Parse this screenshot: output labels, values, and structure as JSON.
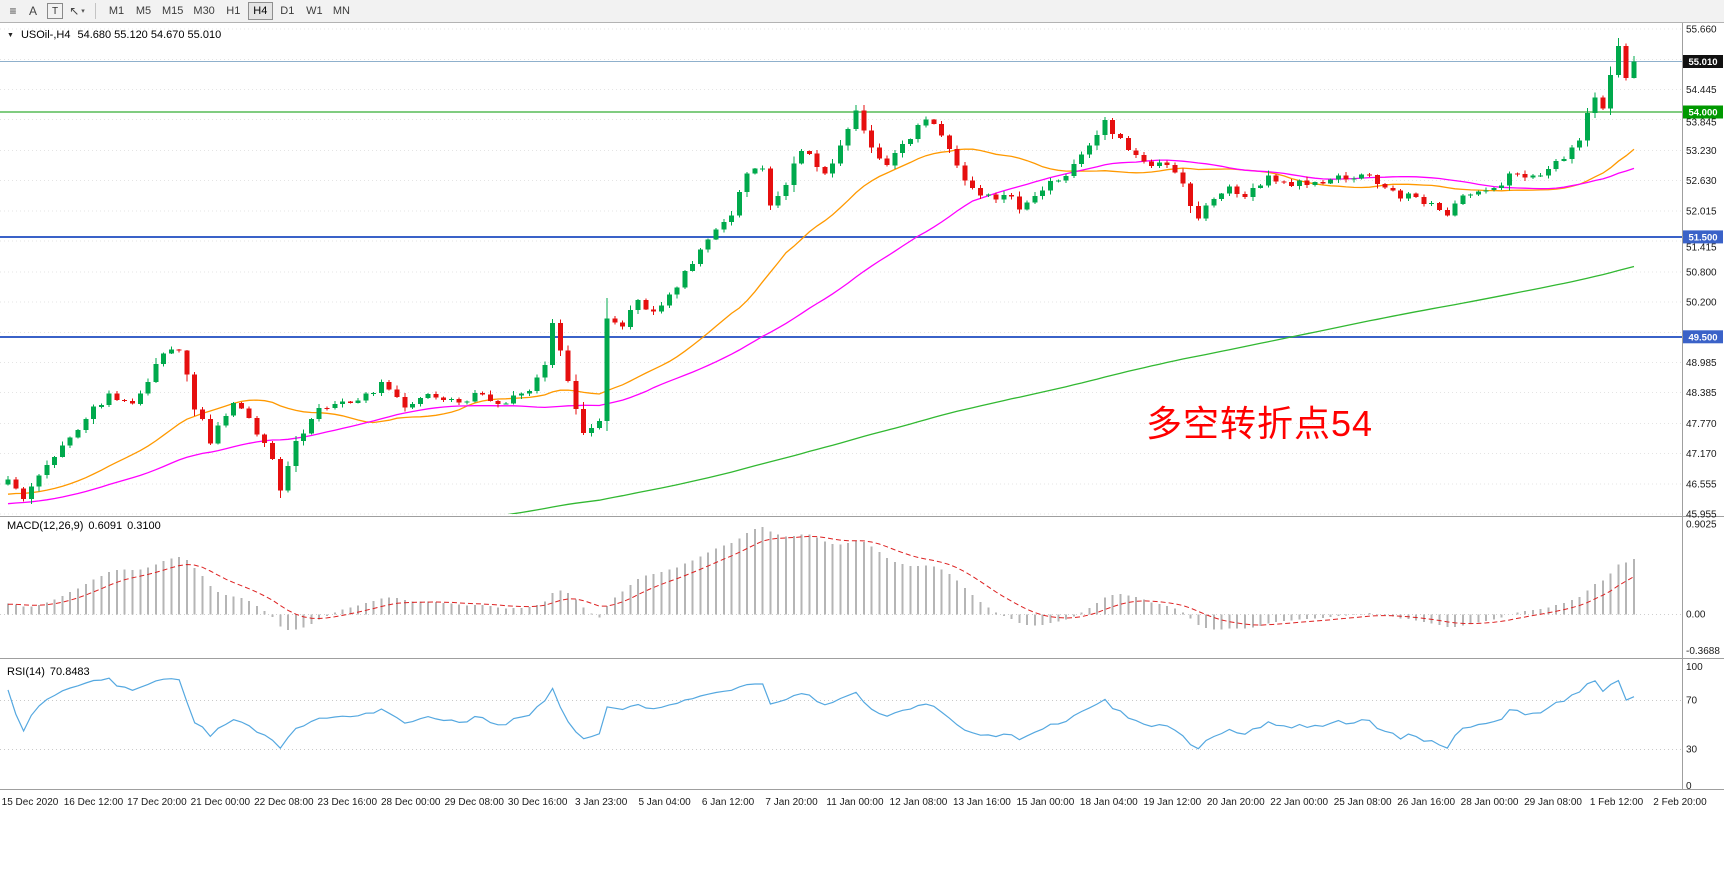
{
  "header": {
    "collapse_icon": "▼",
    "symbol": "USOil-,H4",
    "ohlc_text": "54.680 55.120 54.670 55.010"
  },
  "toolbar": {
    "tools": [
      {
        "name": "chart-objects-icon",
        "glyph": "≡"
      },
      {
        "name": "text-label-tool",
        "glyph": "A"
      },
      {
        "name": "text-box-tool",
        "glyph": "T",
        "boxed": true
      },
      {
        "name": "arrow-tool",
        "glyph": "↖",
        "caret": "▾"
      }
    ],
    "timeframes": [
      "M1",
      "M5",
      "M15",
      "M30",
      "H1",
      "H4",
      "D1",
      "W1",
      "MN"
    ],
    "active_timeframe": "H4"
  },
  "chart": {
    "annotation": {
      "text": "多空转折点54"
    },
    "bid_line": {
      "price": 55.01
    },
    "hlines": [
      {
        "name": "horizontal-line-54000",
        "price": 54.0,
        "width": 1.4,
        "color": "#009900"
      },
      {
        "name": "horizontal-line-51500",
        "price": 51.5,
        "width": 2,
        "color": "#3a62c8"
      },
      {
        "name": "horizontal-line-49500",
        "price": 49.5,
        "width": 2,
        "color": "#3a62c8"
      }
    ],
    "price_axis": {
      "labels": [
        "55.660",
        "54.445",
        "53.845",
        "53.230",
        "52.630",
        "52.015",
        "51.415",
        "50.800",
        "50.200",
        "48.985",
        "48.385",
        "47.770",
        "47.170",
        "46.555",
        "45.955"
      ],
      "grid_values": [
        55.66,
        55.045,
        54.445,
        53.845,
        53.23,
        52.63,
        52.015,
        51.415,
        50.8,
        50.2,
        49.585,
        48.985,
        48.385,
        47.77,
        47.17,
        46.555,
        45.955
      ],
      "badges": [
        {
          "name": "current-price-badge",
          "label": "55.010",
          "price": 55.01,
          "color": "#111111"
        },
        {
          "name": "hline-54000-badge",
          "label": "54.000",
          "price": 54.0,
          "color": "#009900"
        },
        {
          "name": "hline-51500-badge",
          "label": "51.500",
          "price": 51.5,
          "color": "#3a62c8"
        },
        {
          "name": "hline-49500-badge",
          "label": "49.500",
          "price": 49.5,
          "color": "#3a62c8"
        }
      ]
    },
    "time_axis": [
      "15 Dec 2020",
      "16 Dec 12:00",
      "17 Dec 20:00",
      "21 Dec 00:00",
      "22 Dec 08:00",
      "23 Dec 16:00",
      "28 Dec 00:00",
      "29 Dec 08:00",
      "30 Dec 16:00",
      "3 Jan 23:00",
      "5 Jan 04:00",
      "6 Jan 12:00",
      "7 Jan 20:00",
      "11 Jan 00:00",
      "12 Jan 08:00",
      "13 Jan 16:00",
      "15 Jan 00:00",
      "18 Jan 04:00",
      "19 Jan 12:00",
      "20 Jan 20:00",
      "22 Jan 00:00",
      "25 Jan 08:00",
      "26 Jan 16:00",
      "28 Jan 00:00",
      "29 Jan 08:00",
      "1 Feb 12:00",
      "2 Feb 20:00"
    ]
  },
  "macd_panel": {
    "title": "MACD(12,26,9)",
    "macd_value": "0.6091",
    "signal_value": "0.3100",
    "axis_labels": [
      "0.9025",
      "0.00",
      "-0.3688"
    ]
  },
  "rsi_panel": {
    "title": "RSI(14)",
    "value": "70.8483",
    "axis_labels": [
      "100",
      "70",
      "30",
      "0"
    ],
    "levels": [
      70,
      30
    ]
  },
  "colors": {
    "up": "#00a94c",
    "down": "#e60f0f",
    "macd_hist": "#b5b5b5",
    "macd_signal": "#dd2222",
    "rsi_line": "#55a8e0",
    "bid_line": "#8fb0cc",
    "annotation": "#ff0000"
  },
  "chart_data": {
    "type": "candlestick",
    "title": "USOil-,H4",
    "symbol": "USOil-",
    "timeframe": "H4",
    "bars": 210,
    "current_bar": {
      "open": 54.68,
      "high": 55.12,
      "low": 54.67,
      "close": 55.01
    },
    "y_axis": {
      "min": 45.955,
      "max": 55.66
    },
    "x_range": [
      "15 Dec 2020",
      "2 Feb 20:00"
    ],
    "horizontal_lines": [
      54.0,
      51.5,
      49.5
    ],
    "close_path_anchors": [
      [
        0,
        46.6
      ],
      [
        2,
        46.3
      ],
      [
        6,
        47.15
      ],
      [
        10,
        47.9
      ],
      [
        13,
        48.35
      ],
      [
        16,
        48.15
      ],
      [
        20,
        49.2
      ],
      [
        22,
        49.3
      ],
      [
        24,
        48.1
      ],
      [
        26,
        47.45
      ],
      [
        29,
        48.2
      ],
      [
        31,
        47.9
      ],
      [
        34,
        47.0
      ],
      [
        35,
        46.4
      ],
      [
        37,
        47.4
      ],
      [
        40,
        48.05
      ],
      [
        42,
        48.2
      ],
      [
        46,
        48.3
      ],
      [
        48,
        48.6
      ],
      [
        51,
        48.1
      ],
      [
        54,
        48.35
      ],
      [
        58,
        48.15
      ],
      [
        60,
        48.4
      ],
      [
        63,
        48.2
      ],
      [
        66,
        48.3
      ],
      [
        69,
        48.9
      ],
      [
        70,
        49.7
      ],
      [
        72,
        48.6
      ],
      [
        74,
        47.6
      ],
      [
        76,
        47.75
      ],
      [
        77,
        49.9
      ],
      [
        79,
        49.7
      ],
      [
        81,
        50.2
      ],
      [
        83,
        49.95
      ],
      [
        85,
        50.3
      ],
      [
        87,
        50.8
      ],
      [
        90,
        51.4
      ],
      [
        93,
        52.0
      ],
      [
        95,
        52.75
      ],
      [
        97,
        52.9
      ],
      [
        98,
        52.15
      ],
      [
        100,
        52.5
      ],
      [
        102,
        53.3
      ],
      [
        105,
        52.7
      ],
      [
        107,
        53.4
      ],
      [
        109,
        53.95
      ],
      [
        111,
        53.3
      ],
      [
        113,
        53.0
      ],
      [
        116,
        53.5
      ],
      [
        118,
        53.85
      ],
      [
        120,
        53.6
      ],
      [
        122,
        52.9
      ],
      [
        124,
        52.4
      ],
      [
        127,
        52.2
      ],
      [
        129,
        52.35
      ],
      [
        130,
        52.1
      ],
      [
        132,
        52.4
      ],
      [
        135,
        52.6
      ],
      [
        138,
        53.1
      ],
      [
        141,
        53.8
      ],
      [
        143,
        53.4
      ],
      [
        145,
        53.2
      ],
      [
        147,
        52.9
      ],
      [
        149,
        53.0
      ],
      [
        151,
        52.5
      ],
      [
        153,
        51.9
      ],
      [
        155,
        52.2
      ],
      [
        157,
        52.5
      ],
      [
        159,
        52.3
      ],
      [
        162,
        52.7
      ],
      [
        165,
        52.6
      ],
      [
        167,
        52.5
      ],
      [
        170,
        52.7
      ],
      [
        172,
        52.6
      ],
      [
        175,
        52.8
      ],
      [
        177,
        52.4
      ],
      [
        180,
        52.3
      ],
      [
        182,
        52.2
      ],
      [
        185,
        51.95
      ],
      [
        187,
        52.3
      ],
      [
        190,
        52.5
      ],
      [
        192,
        52.6
      ],
      [
        194,
        52.8
      ],
      [
        196,
        52.65
      ],
      [
        198,
        52.9
      ],
      [
        200,
        53.1
      ],
      [
        202,
        53.5
      ],
      [
        203,
        53.9
      ],
      [
        204,
        54.2
      ],
      [
        205,
        54.15
      ],
      [
        206,
        54.75
      ],
      [
        207,
        55.35
      ],
      [
        208,
        54.68
      ],
      [
        209,
        55.01
      ]
    ],
    "prehistory_anchors": [
      [
        0,
        40.5
      ],
      [
        60,
        42.2
      ],
      [
        120,
        43.8
      ],
      [
        180,
        45.6
      ],
      [
        239,
        46.5
      ]
    ],
    "moving_averages": [
      {
        "name": "fast",
        "period": 24,
        "color": "#ff9900"
      },
      {
        "name": "mid",
        "period": 48,
        "color": "#ff00ff"
      },
      {
        "name": "slow",
        "period": 210,
        "color": "#32b832"
      }
    ],
    "macd": {
      "fast": 12,
      "slow": 26,
      "signal": 9,
      "macd_value": 0.6091,
      "signal_value": 0.31,
      "axis": [
        0.9025,
        0.0,
        -0.3688
      ]
    },
    "rsi": {
      "period": 14,
      "value": 70.8483,
      "levels": [
        70,
        30
      ]
    }
  }
}
